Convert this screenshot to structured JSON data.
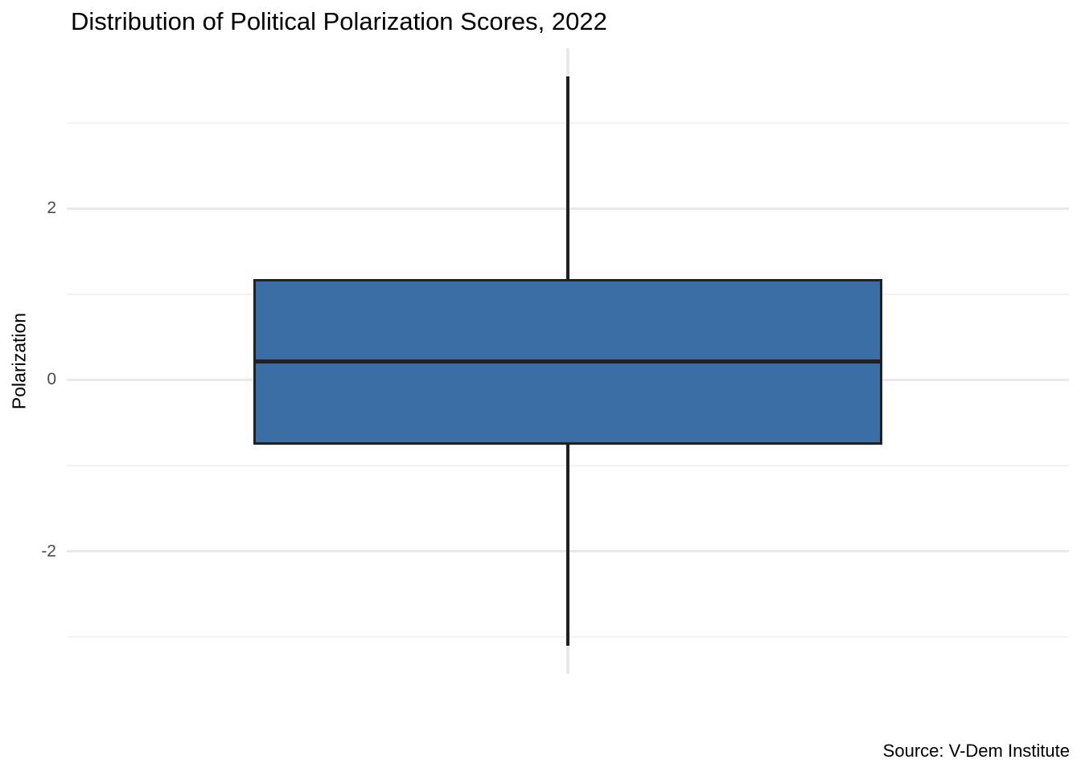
{
  "chart_data": {
    "type": "boxplot",
    "title": "Distribution of Political Polarization Scores, 2022",
    "xlabel": "",
    "ylabel": "Polarization",
    "source": "Source: V-Dem Institute",
    "categories": [
      ""
    ],
    "series": [
      {
        "name": "Political polarization scores",
        "whisker_low": -3.1,
        "q1": -0.74,
        "median": 0.22,
        "q3": 1.16,
        "whisker_high": 3.54
      }
    ],
    "y_ticks": [
      2,
      0,
      -2
    ],
    "y_tick_labels": [
      "2",
      "0",
      "-2"
    ],
    "y_minor_ticks": [
      3,
      1,
      -1,
      -3
    ],
    "ylim": [
      -3.43,
      3.87
    ],
    "grid": true,
    "legend_position": "none",
    "colors": {
      "box_fill": "#3a6ea5",
      "box_border": "#212121",
      "whisker": "#1f1f1f",
      "grid_major": "#e9e9e9",
      "grid_minor": "#f2f2f2",
      "tick_label": "#4d4d4d",
      "title": "#000000"
    }
  }
}
